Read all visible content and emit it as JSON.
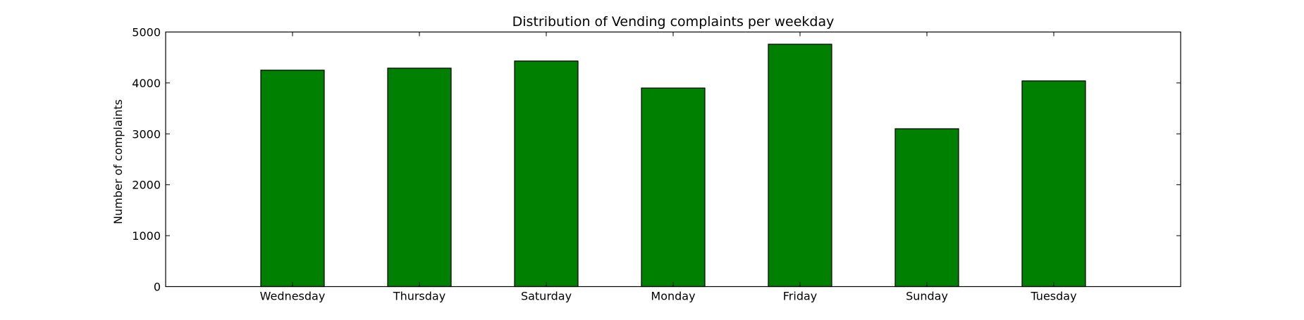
{
  "chart_data": {
    "type": "bar",
    "title": "Distribution of  Vending complaints per weekday",
    "xlabel": "",
    "ylabel": "Number of complaints",
    "categories": [
      "Wednesday",
      "Thursday",
      "Saturday",
      "Monday",
      "Friday",
      "Sunday",
      "Tuesday"
    ],
    "values": [
      4250,
      4290,
      4430,
      3900,
      4760,
      3100,
      4040
    ],
    "ylim": [
      0,
      5000
    ],
    "yticks": [
      0,
      1000,
      2000,
      3000,
      4000,
      5000
    ],
    "bar_color": "#008000",
    "bar_edge_color": "#000000",
    "grid": false,
    "legend": "none"
  }
}
